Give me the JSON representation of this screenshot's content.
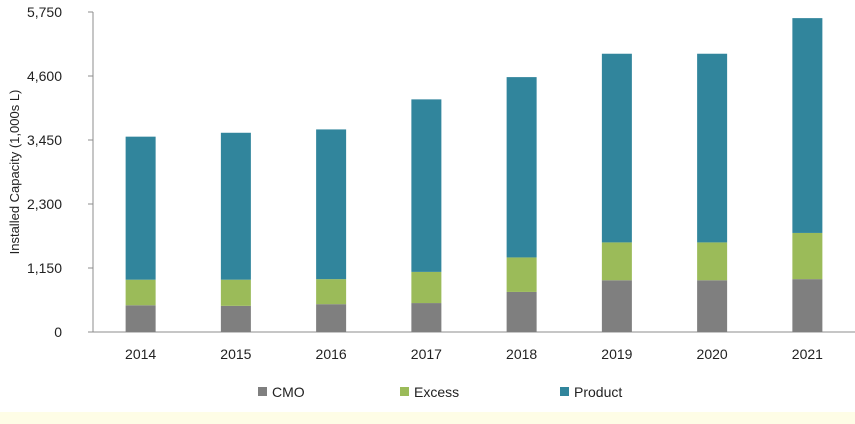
{
  "chart_data": {
    "type": "bar",
    "stacked": true,
    "categories": [
      "2014",
      "2015",
      "2016",
      "2017",
      "2018",
      "2019",
      "2020",
      "2021"
    ],
    "series": [
      {
        "name": "CMO",
        "color": "#7f7f7f",
        "values": [
          480,
          470,
          500,
          520,
          720,
          930,
          930,
          950
        ]
      },
      {
        "name": "Excess",
        "color": "#9bbb59",
        "values": [
          460,
          470,
          450,
          560,
          620,
          680,
          680,
          830
        ]
      },
      {
        "name": "Product",
        "color": "#31859c",
        "values": [
          2570,
          2640,
          2690,
          3100,
          3240,
          3390,
          3390,
          3860
        ]
      }
    ],
    "yticks": [
      "0",
      "1,150",
      "2,300",
      "3,450",
      "4,600",
      "5,750"
    ],
    "ylim": [
      0,
      5750
    ],
    "ylabel": "Installed Capacity (1,000s L)",
    "legend": "bottom",
    "grid": false
  }
}
